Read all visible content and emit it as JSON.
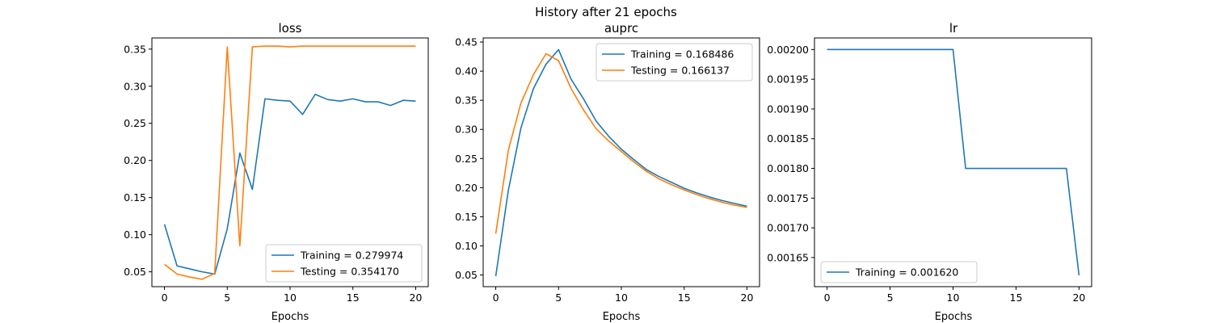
{
  "figure": {
    "title": "History after 21 epochs"
  },
  "colors": {
    "training": "#1f77b4",
    "testing": "#ff7f0e",
    "axes": "#000000",
    "legend_border": "#cccccc"
  },
  "chart_data": [
    {
      "type": "line",
      "title": "loss",
      "xlabel": "Epochs",
      "ylabel": "",
      "xlim": [
        -1,
        21
      ],
      "ylim": [
        0.03,
        0.365
      ],
      "xticks": [
        "0",
        "5",
        "10",
        "15",
        "20"
      ],
      "yticks": [
        "0.05",
        "0.10",
        "0.15",
        "0.20",
        "0.25",
        "0.30",
        "0.35"
      ],
      "legend_position": "lower right",
      "grid": false,
      "x": [
        0,
        1,
        2,
        3,
        4,
        5,
        6,
        7,
        8,
        9,
        10,
        11,
        12,
        13,
        14,
        15,
        16,
        17,
        18,
        19,
        20
      ],
      "series": [
        {
          "name": "Training = 0.279974",
          "color": "#1f77b4",
          "values": [
            0.114,
            0.058,
            0.054,
            0.05,
            0.047,
            0.108,
            0.21,
            0.161,
            0.283,
            0.281,
            0.28,
            0.262,
            0.289,
            0.282,
            0.28,
            0.283,
            0.279,
            0.279,
            0.274,
            0.281,
            0.28
          ]
        },
        {
          "name": "Testing = 0.354170",
          "color": "#ff7f0e",
          "values": [
            0.06,
            0.047,
            0.043,
            0.04,
            0.048,
            0.353,
            0.085,
            0.353,
            0.354,
            0.354,
            0.353,
            0.354,
            0.354,
            0.354,
            0.354,
            0.354,
            0.354,
            0.354,
            0.354,
            0.354,
            0.354
          ]
        }
      ]
    },
    {
      "type": "line",
      "title": "auprc",
      "xlabel": "Epochs",
      "ylabel": "",
      "xlim": [
        -1,
        21
      ],
      "ylim": [
        0.03,
        0.457
      ],
      "xticks": [
        "0",
        "5",
        "10",
        "15",
        "20"
      ],
      "yticks": [
        "0.05",
        "0.10",
        "0.15",
        "0.20",
        "0.25",
        "0.30",
        "0.35",
        "0.40",
        "0.45"
      ],
      "legend_position": "upper right",
      "grid": false,
      "x": [
        0,
        1,
        2,
        3,
        4,
        5,
        6,
        7,
        8,
        9,
        10,
        11,
        12,
        13,
        14,
        15,
        16,
        17,
        18,
        19,
        20
      ],
      "series": [
        {
          "name": "Training = 0.168486",
          "color": "#1f77b4",
          "values": [
            0.048,
            0.195,
            0.302,
            0.37,
            0.412,
            0.437,
            0.386,
            0.352,
            0.314,
            0.288,
            0.266,
            0.248,
            0.231,
            0.219,
            0.209,
            0.199,
            0.191,
            0.184,
            0.178,
            0.173,
            0.168
          ]
        },
        {
          "name": "Testing = 0.166137",
          "color": "#ff7f0e",
          "values": [
            0.121,
            0.264,
            0.345,
            0.394,
            0.43,
            0.418,
            0.37,
            0.333,
            0.301,
            0.28,
            0.262,
            0.244,
            0.228,
            0.215,
            0.205,
            0.196,
            0.188,
            0.181,
            0.175,
            0.17,
            0.166
          ]
        }
      ]
    },
    {
      "type": "line",
      "title": "lr",
      "xlabel": "Epochs",
      "ylabel": "",
      "xlim": [
        -1,
        21
      ],
      "ylim": [
        0.001601,
        0.0020195
      ],
      "xticks": [
        "0",
        "5",
        "10",
        "15",
        "20"
      ],
      "yticks": [
        "0.00165",
        "0.00170",
        "0.00175",
        "0.00180",
        "0.00185",
        "0.00190",
        "0.00195",
        "0.00200"
      ],
      "legend_position": "lower left",
      "grid": false,
      "x": [
        0,
        1,
        2,
        3,
        4,
        5,
        6,
        7,
        8,
        9,
        10,
        11,
        12,
        13,
        14,
        15,
        16,
        17,
        18,
        19,
        20
      ],
      "series": [
        {
          "name": "Training = 0.001620",
          "color": "#1f77b4",
          "values": [
            0.002,
            0.002,
            0.002,
            0.002,
            0.002,
            0.002,
            0.002,
            0.002,
            0.002,
            0.002,
            0.002,
            0.0018,
            0.0018,
            0.0018,
            0.0018,
            0.0018,
            0.0018,
            0.0018,
            0.0018,
            0.0018,
            0.00162
          ]
        }
      ]
    }
  ]
}
